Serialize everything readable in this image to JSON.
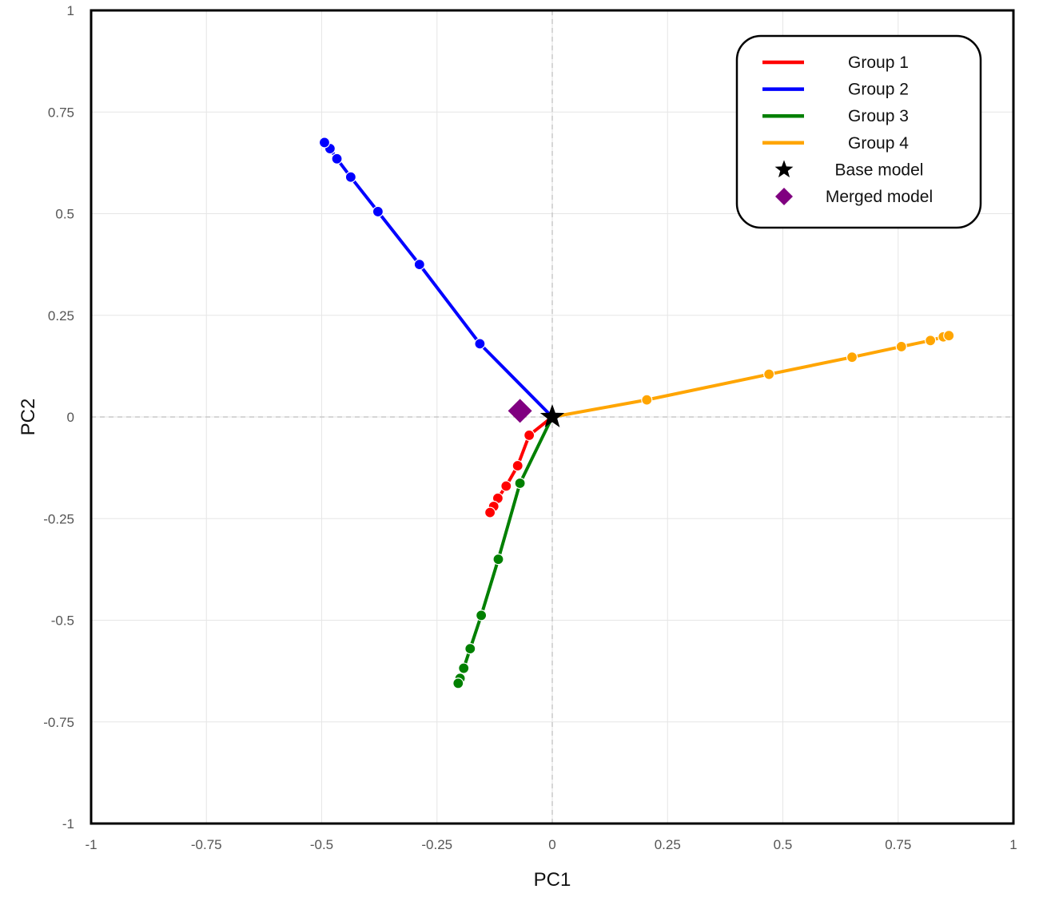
{
  "chart_data": {
    "type": "line",
    "xlabel": "PC1",
    "ylabel": "PC2",
    "xlim": [
      -1,
      1
    ],
    "ylim": [
      -1,
      1
    ],
    "xticks": [
      "-1",
      "-0.75",
      "-0.5",
      "-0.25",
      "0",
      "0.25",
      "0.5",
      "0.75",
      "1"
    ],
    "yticks": [
      "1",
      "0.75",
      "0.5",
      "0.25",
      "0",
      "-0.25",
      "-0.5",
      "-0.75",
      "-1"
    ],
    "grid": true,
    "zero_lines": "dashed",
    "legend_position": "top-right",
    "series": [
      {
        "name": "Group 1",
        "color": "#ff0000",
        "points": [
          [
            0,
            0
          ],
          [
            -0.05,
            -0.045
          ],
          [
            -0.075,
            -0.12
          ],
          [
            -0.1,
            -0.17
          ],
          [
            -0.118,
            -0.2
          ],
          [
            -0.127,
            -0.22
          ],
          [
            -0.135,
            -0.235
          ]
        ]
      },
      {
        "name": "Group 2",
        "color": "#0000ff",
        "points": [
          [
            0,
            0
          ],
          [
            -0.157,
            0.18
          ],
          [
            -0.288,
            0.375
          ],
          [
            -0.378,
            0.505
          ],
          [
            -0.437,
            0.59
          ],
          [
            -0.467,
            0.635
          ],
          [
            -0.482,
            0.66
          ],
          [
            -0.494,
            0.675
          ]
        ]
      },
      {
        "name": "Group 3",
        "color": "#008000",
        "points": [
          [
            0,
            0
          ],
          [
            -0.07,
            -0.163
          ],
          [
            -0.117,
            -0.35
          ],
          [
            -0.154,
            -0.488
          ],
          [
            -0.178,
            -0.57
          ],
          [
            -0.192,
            -0.618
          ],
          [
            -0.2,
            -0.643
          ],
          [
            -0.204,
            -0.655
          ]
        ]
      },
      {
        "name": "Group 4",
        "color": "#ffa500",
        "points": [
          [
            0,
            0
          ],
          [
            0.205,
            0.042
          ],
          [
            0.47,
            0.105
          ],
          [
            0.65,
            0.147
          ],
          [
            0.757,
            0.173
          ],
          [
            0.82,
            0.188
          ],
          [
            0.848,
            0.197
          ],
          [
            0.86,
            0.2
          ]
        ]
      }
    ],
    "markers": [
      {
        "name": "Base model",
        "shape": "star",
        "color": "#000000",
        "x": 0,
        "y": 0
      },
      {
        "name": "Merged model",
        "shape": "diamond",
        "color": "#800080",
        "x": -0.07,
        "y": 0.015
      }
    ]
  }
}
